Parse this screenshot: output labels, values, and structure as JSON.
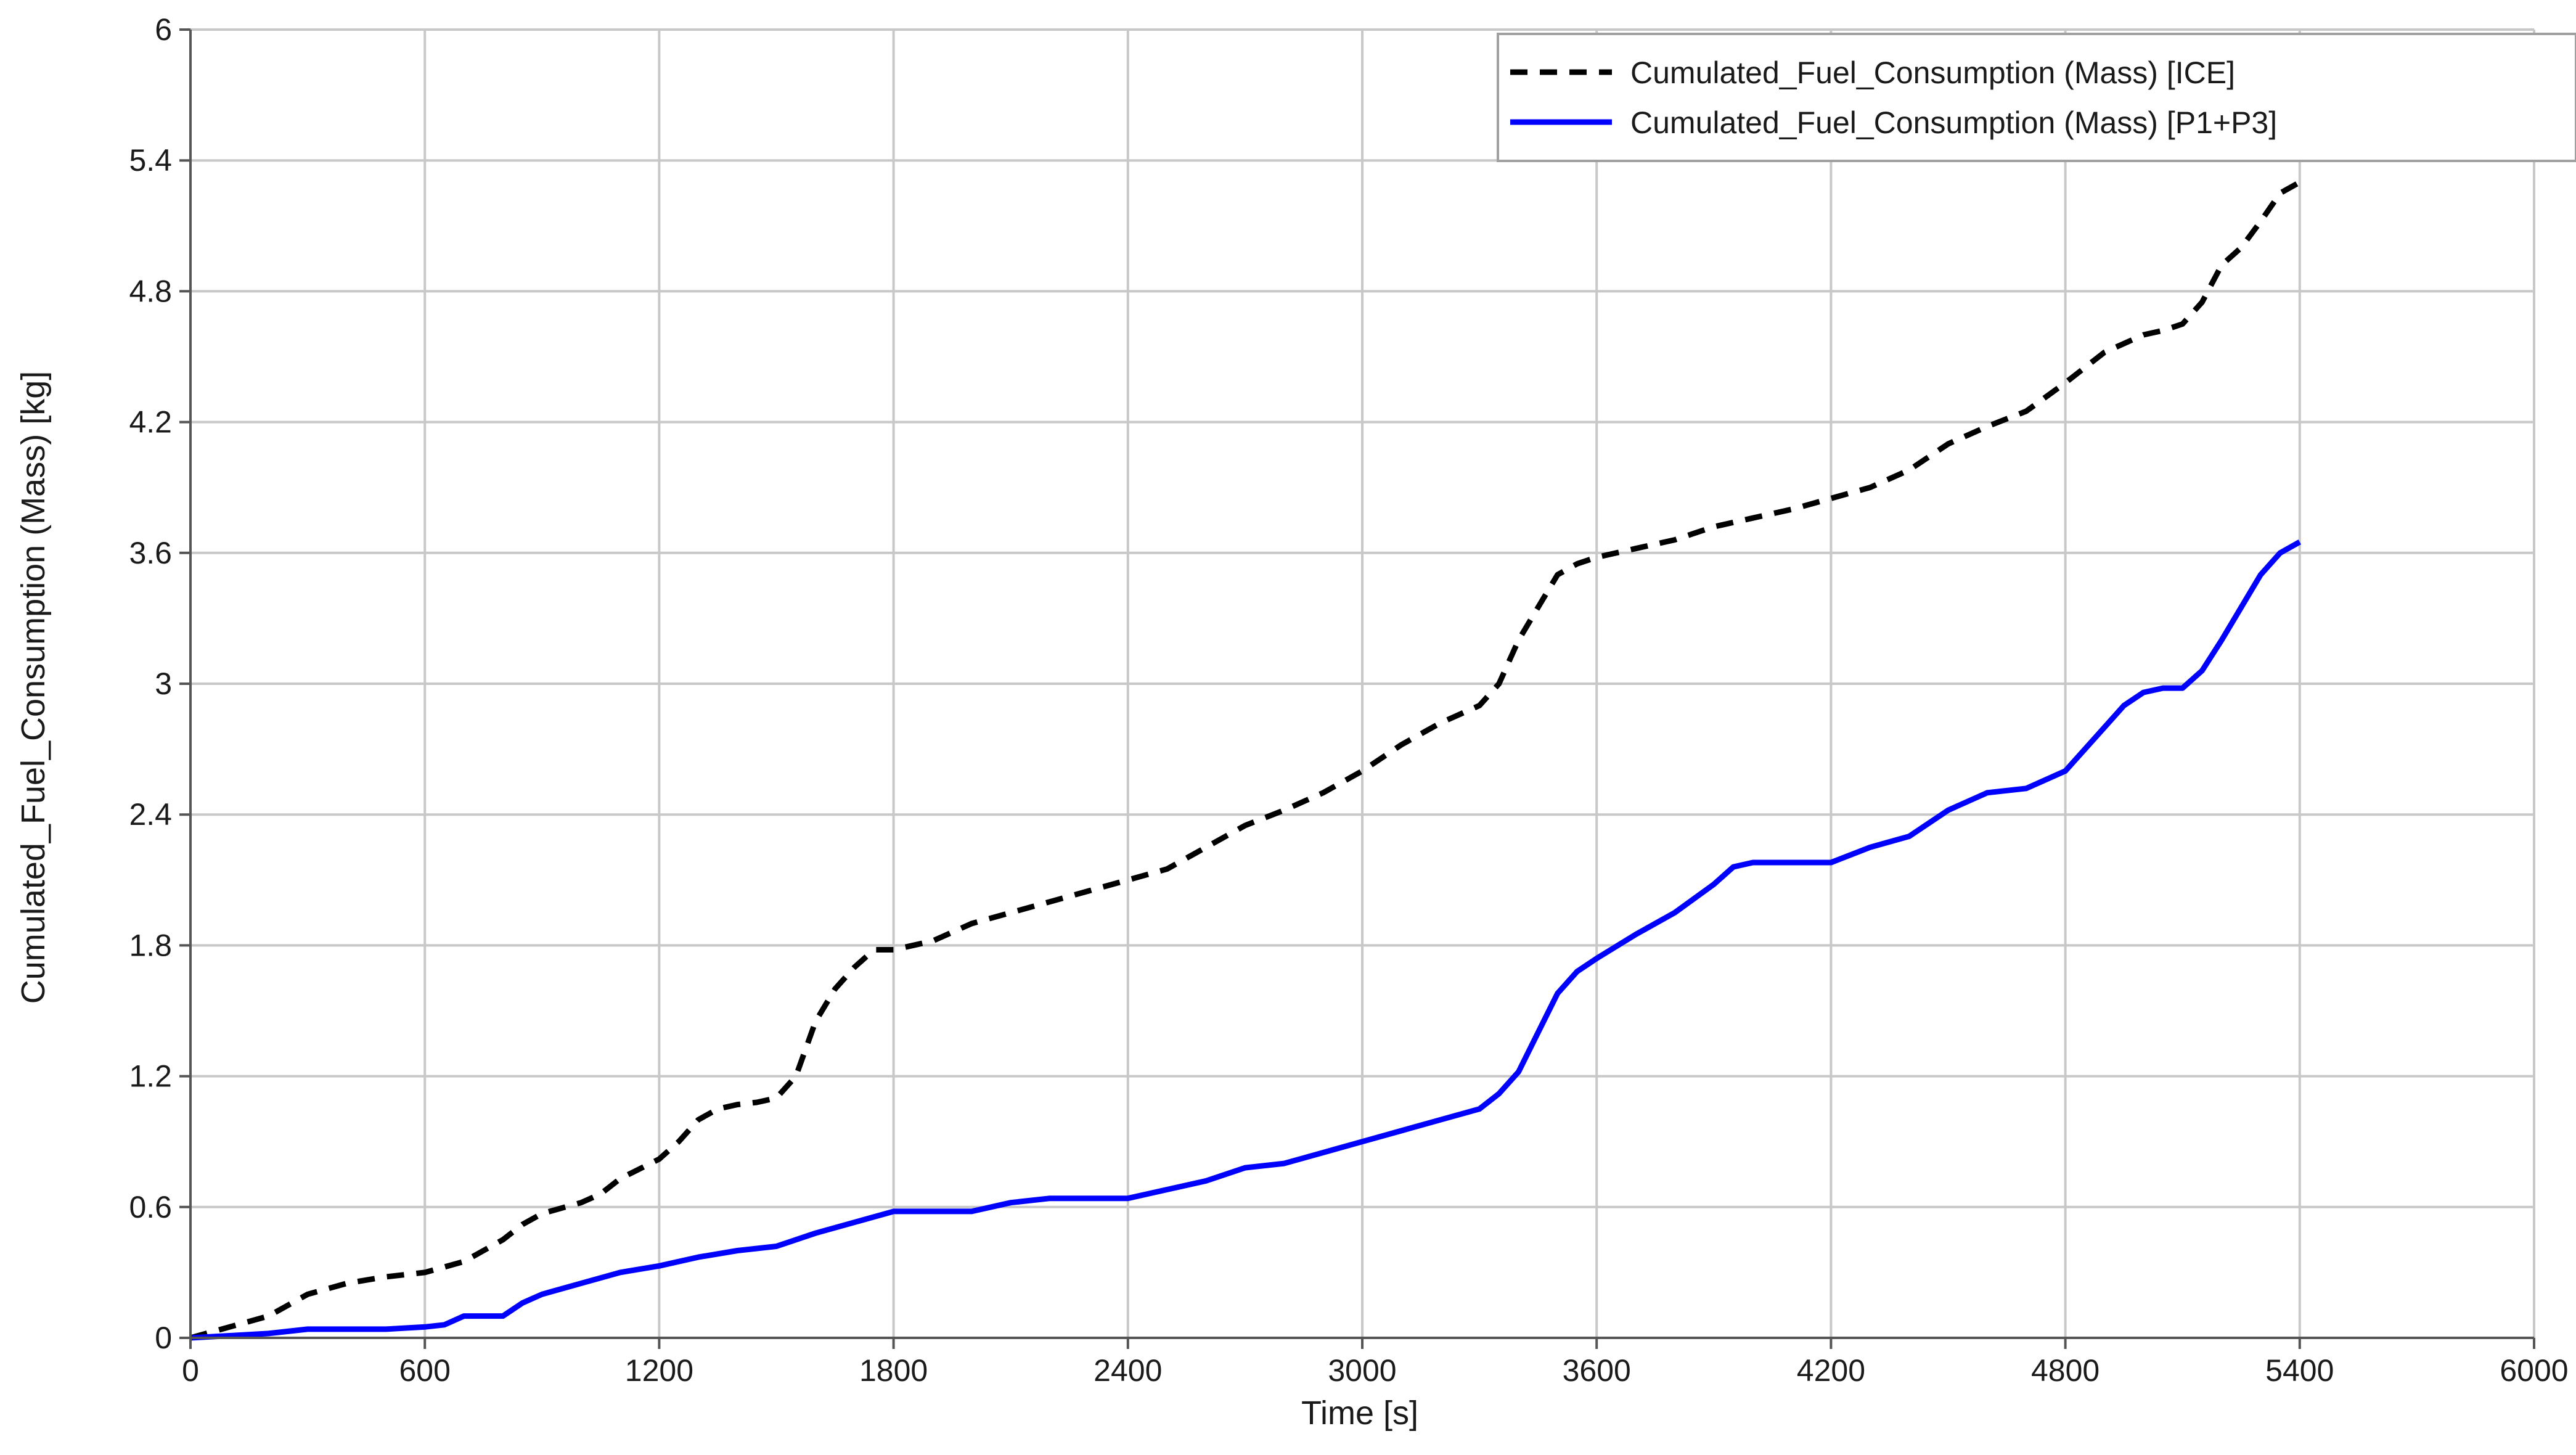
{
  "chart_data": {
    "type": "line",
    "title": "",
    "xlabel": "Time [s]",
    "ylabel": "Cumulated_Fuel_Consumption (Mass) [kg]",
    "xlim": [
      0,
      6000
    ],
    "ylim": [
      0,
      6
    ],
    "x_ticks": [
      0,
      600,
      1200,
      1800,
      2400,
      3000,
      3600,
      4200,
      4800,
      5400,
      6000
    ],
    "x_tick_labels": [
      "0",
      "600",
      "1200",
      "1800",
      "2400",
      "3000",
      "3600",
      "4200",
      "4800",
      "5400",
      "6000"
    ],
    "y_ticks": [
      0,
      0.6,
      1.2,
      1.8,
      2.4,
      3,
      3.6,
      4.2,
      4.8,
      5.4,
      6
    ],
    "y_tick_labels": [
      "0",
      "0.6",
      "1.2",
      "1.8",
      "2.4",
      "3",
      "3.6",
      "4.2",
      "4.8",
      "5.4",
      "6"
    ],
    "grid": true,
    "legend_position": "top-right",
    "series": [
      {
        "name": "Cumulated_Fuel_Consumption (Mass) [ICE]",
        "color": "#000000",
        "line_style": "dashed",
        "x": [
          0,
          100,
          200,
          300,
          400,
          500,
          600,
          700,
          750,
          800,
          850,
          900,
          1000,
          1050,
          1100,
          1200,
          1250,
          1300,
          1350,
          1400,
          1450,
          1500,
          1550,
          1600,
          1650,
          1700,
          1750,
          1800,
          1900,
          2000,
          2100,
          2200,
          2300,
          2400,
          2500,
          2600,
          2700,
          2800,
          2900,
          3000,
          3100,
          3200,
          3300,
          3350,
          3400,
          3450,
          3500,
          3550,
          3600,
          3700,
          3800,
          3900,
          4000,
          4100,
          4200,
          4300,
          4400,
          4500,
          4600,
          4700,
          4800,
          4900,
          5000,
          5050,
          5100,
          5150,
          5200,
          5250,
          5300,
          5350,
          5400
        ],
        "y": [
          0,
          0.05,
          0.1,
          0.2,
          0.25,
          0.28,
          0.3,
          0.35,
          0.4,
          0.45,
          0.52,
          0.57,
          0.62,
          0.66,
          0.73,
          0.82,
          0.9,
          1.0,
          1.05,
          1.07,
          1.08,
          1.1,
          1.2,
          1.45,
          1.6,
          1.7,
          1.78,
          1.78,
          1.82,
          1.9,
          1.95,
          2.0,
          2.05,
          2.1,
          2.15,
          2.25,
          2.35,
          2.42,
          2.5,
          2.6,
          2.72,
          2.82,
          2.9,
          3.0,
          3.2,
          3.35,
          3.5,
          3.55,
          3.58,
          3.62,
          3.66,
          3.72,
          3.76,
          3.8,
          3.85,
          3.9,
          3.98,
          4.1,
          4.18,
          4.25,
          4.38,
          4.52,
          4.6,
          4.62,
          4.65,
          4.75,
          4.92,
          5.0,
          5.12,
          5.25,
          5.3
        ]
      },
      {
        "name": "Cumulated_Fuel_Consumption (Mass) [P1+P3]",
        "color": "#0000ff",
        "line_style": "solid",
        "x": [
          0,
          100,
          200,
          300,
          400,
          500,
          600,
          650,
          700,
          800,
          850,
          900,
          1000,
          1100,
          1200,
          1300,
          1400,
          1500,
          1600,
          1700,
          1800,
          1900,
          2000,
          2100,
          2200,
          2300,
          2400,
          2500,
          2600,
          2700,
          2800,
          2900,
          3000,
          3100,
          3200,
          3300,
          3350,
          3400,
          3450,
          3500,
          3550,
          3600,
          3700,
          3800,
          3900,
          3950,
          4000,
          4100,
          4200,
          4300,
          4400,
          4500,
          4600,
          4700,
          4800,
          4900,
          4950,
          5000,
          5050,
          5100,
          5150,
          5200,
          5250,
          5300,
          5350,
          5400
        ],
        "y": [
          0,
          0.01,
          0.02,
          0.04,
          0.04,
          0.04,
          0.05,
          0.06,
          0.1,
          0.1,
          0.16,
          0.2,
          0.25,
          0.3,
          0.33,
          0.37,
          0.4,
          0.42,
          0.48,
          0.53,
          0.58,
          0.58,
          0.58,
          0.62,
          0.64,
          0.64,
          0.64,
          0.68,
          0.72,
          0.78,
          0.8,
          0.85,
          0.9,
          0.95,
          1.0,
          1.05,
          1.12,
          1.22,
          1.4,
          1.58,
          1.68,
          1.74,
          1.85,
          1.95,
          2.08,
          2.16,
          2.18,
          2.18,
          2.18,
          2.25,
          2.3,
          2.42,
          2.5,
          2.52,
          2.6,
          2.8,
          2.9,
          2.96,
          2.98,
          2.98,
          3.06,
          3.2,
          3.35,
          3.5,
          3.6,
          3.65
        ]
      }
    ]
  }
}
